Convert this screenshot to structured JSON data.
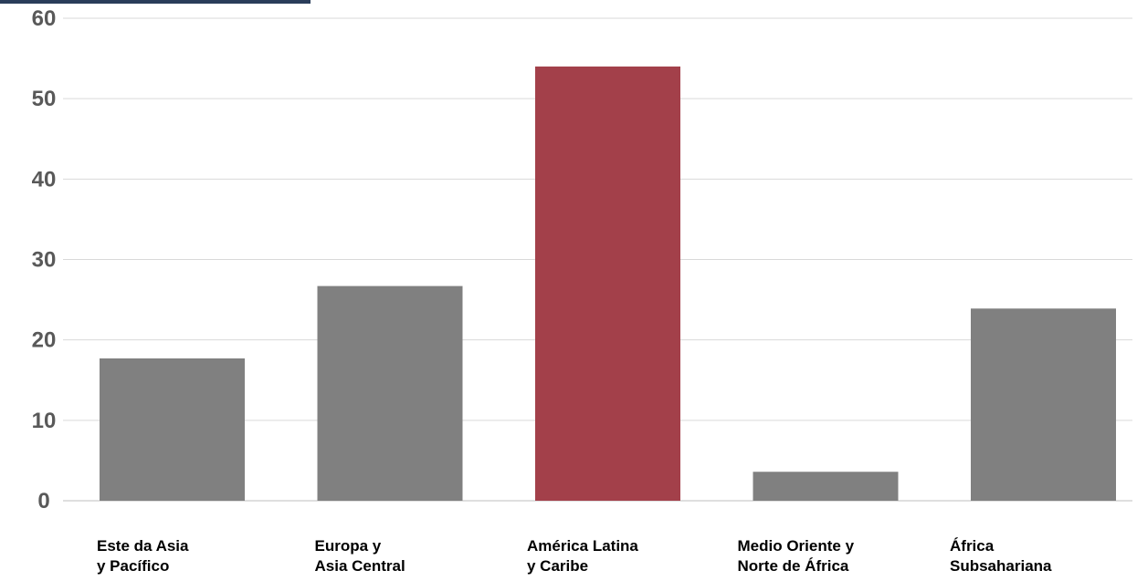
{
  "chart_data": {
    "type": "bar",
    "categories": [
      [
        "Este da Asia",
        "y Pacífico"
      ],
      [
        "Europa y",
        "Asia Central"
      ],
      [
        "América Latina",
        "y Caribe"
      ],
      [
        "Medio Oriente y",
        "Norte de África"
      ],
      [
        "África",
        "Subsahariana"
      ]
    ],
    "values": [
      17.7,
      26.7,
      54.0,
      3.6,
      23.9
    ],
    "bar_colors": [
      "#808080",
      "#808080",
      "#a3404a",
      "#808080",
      "#808080"
    ],
    "ylim": [
      0,
      60
    ],
    "yticks": [
      "0",
      "10",
      "20",
      "30",
      "40",
      "50",
      "60"
    ],
    "grid": true,
    "title": "",
    "xlabel": "",
    "ylabel": ""
  }
}
